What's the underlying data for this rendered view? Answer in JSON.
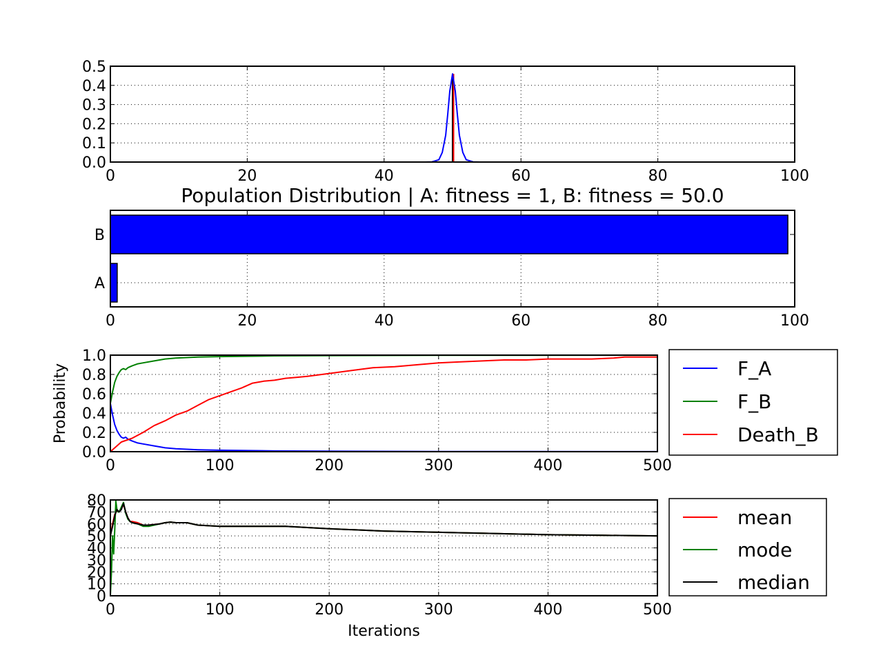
{
  "chart_data": [
    {
      "id": "p1",
      "type": "line",
      "title": "",
      "xlim": [
        0,
        100
      ],
      "ylim": [
        0,
        0.5
      ],
      "xticks": [
        "0",
        "20",
        "40",
        "60",
        "80",
        "100"
      ],
      "yticks": [
        "0.0",
        "0.1",
        "0.2",
        "0.3",
        "0.4",
        "0.5"
      ],
      "grid": true,
      "series": [
        {
          "color": "#0000ff",
          "x": [
            46,
            47,
            48,
            48.5,
            49,
            49.3,
            49.6,
            50,
            50.4,
            50.7,
            51,
            51.5,
            52,
            53,
            54
          ],
          "y": [
            0,
            0.001,
            0.012,
            0.05,
            0.14,
            0.25,
            0.37,
            0.46,
            0.37,
            0.25,
            0.14,
            0.05,
            0.012,
            0.001,
            0
          ]
        }
      ],
      "vlines": [
        {
          "x": 50,
          "ymin": 0,
          "ymax": 0.46,
          "color": "#000000"
        },
        {
          "x": 50.15,
          "ymin": 0,
          "ymax": 0.46,
          "color": "#ff0000"
        }
      ]
    },
    {
      "id": "p2",
      "type": "bar",
      "orientation": "horizontal",
      "title": "Population Distribution | A: fitness = 1,  B: fitness = 50.0",
      "categories": [
        "A",
        "B"
      ],
      "values": [
        1,
        99
      ],
      "xlim": [
        0,
        100
      ],
      "xticks": [
        "0",
        "20",
        "40",
        "60",
        "80",
        "100"
      ],
      "grid": true,
      "color": "#0000ff"
    },
    {
      "id": "p3",
      "type": "line",
      "ylabel": "Probability",
      "xlim": [
        0,
        500
      ],
      "ylim": [
        0,
        1.0
      ],
      "xticks": [
        "0",
        "100",
        "200",
        "300",
        "400",
        "500"
      ],
      "yticks": [
        "0.0",
        "0.2",
        "0.4",
        "0.6",
        "0.8",
        "1.0"
      ],
      "grid": true,
      "legend": "outside-right",
      "series": [
        {
          "name": "F_A",
          "color": "#0000ff",
          "x": [
            0,
            2,
            4,
            6,
            8,
            10,
            12,
            14,
            16,
            20,
            25,
            30,
            40,
            50,
            60,
            80,
            100,
            150,
            200,
            300,
            500
          ],
          "y": [
            0.5,
            0.38,
            0.28,
            0.22,
            0.18,
            0.15,
            0.14,
            0.15,
            0.13,
            0.11,
            0.09,
            0.08,
            0.06,
            0.04,
            0.03,
            0.02,
            0.015,
            0.008,
            0.005,
            0.002,
            0.001
          ]
        },
        {
          "name": "F_B",
          "color": "#008000",
          "x": [
            0,
            2,
            4,
            6,
            8,
            10,
            12,
            14,
            16,
            20,
            25,
            30,
            40,
            50,
            60,
            80,
            100,
            150,
            200,
            300,
            500
          ],
          "y": [
            0.5,
            0.62,
            0.72,
            0.78,
            0.82,
            0.85,
            0.86,
            0.85,
            0.87,
            0.89,
            0.91,
            0.92,
            0.94,
            0.96,
            0.97,
            0.98,
            0.985,
            0.992,
            0.995,
            0.998,
            0.999
          ]
        },
        {
          "name": "Death_B",
          "color": "#ff0000",
          "x": [
            0,
            10,
            20,
            30,
            40,
            50,
            60,
            70,
            80,
            90,
            100,
            110,
            120,
            130,
            140,
            150,
            160,
            170,
            180,
            200,
            220,
            240,
            260,
            280,
            300,
            320,
            340,
            360,
            380,
            400,
            420,
            440,
            460,
            470,
            480,
            500
          ],
          "y": [
            0,
            0.1,
            0.14,
            0.2,
            0.27,
            0.32,
            0.38,
            0.42,
            0.48,
            0.54,
            0.58,
            0.62,
            0.66,
            0.71,
            0.73,
            0.74,
            0.76,
            0.77,
            0.78,
            0.81,
            0.84,
            0.87,
            0.88,
            0.9,
            0.92,
            0.93,
            0.94,
            0.95,
            0.95,
            0.96,
            0.96,
            0.96,
            0.97,
            0.98,
            0.98,
            0.98
          ]
        }
      ]
    },
    {
      "id": "p4",
      "type": "line",
      "xlabel": "Iterations",
      "xlim": [
        0,
        500
      ],
      "ylim": [
        0,
        80
      ],
      "xticks": [
        "0",
        "100",
        "200",
        "300",
        "400",
        "500"
      ],
      "yticks": [
        "0",
        "10",
        "20",
        "30",
        "40",
        "50",
        "60",
        "70",
        "80"
      ],
      "grid": true,
      "legend": "outside-right",
      "series": [
        {
          "name": "mean",
          "color": "#ff0000",
          "x": [
            0,
            2,
            4,
            6,
            8,
            10,
            12,
            14,
            16,
            18,
            20,
            25,
            30,
            35,
            40,
            45,
            50,
            55,
            60,
            70,
            80,
            100,
            120,
            160,
            200,
            250,
            300,
            350,
            400,
            450,
            500
          ],
          "y": [
            50,
            60,
            68,
            71,
            70,
            73,
            76,
            70,
            65,
            62,
            62,
            61,
            59,
            59,
            59.5,
            60,
            61,
            61.5,
            61,
            61,
            59,
            58,
            58,
            58,
            56,
            54,
            53,
            52,
            51,
            50.5,
            50
          ]
        },
        {
          "name": "mode",
          "color": "#008000",
          "x": [
            0,
            1,
            2,
            3,
            4,
            5,
            6,
            7,
            8,
            10,
            12,
            14,
            16,
            18,
            20,
            25,
            30,
            35,
            40,
            45,
            50,
            55,
            60,
            70,
            80,
            100,
            120,
            160,
            200,
            250,
            300,
            350,
            400,
            450,
            500
          ],
          "y": [
            0,
            20,
            50,
            35,
            55,
            79,
            72,
            70,
            70,
            74,
            78,
            69,
            64,
            62,
            61,
            60,
            58,
            58,
            59,
            60,
            61,
            61.5,
            61,
            61,
            59,
            58,
            58,
            58,
            56,
            54,
            53,
            52,
            51,
            50.5,
            50
          ]
        },
        {
          "name": "median",
          "color": "#000000",
          "x": [
            0,
            2,
            4,
            6,
            8,
            10,
            12,
            14,
            16,
            18,
            20,
            25,
            30,
            35,
            40,
            45,
            50,
            55,
            60,
            70,
            80,
            100,
            120,
            160,
            200,
            250,
            300,
            350,
            400,
            450,
            500
          ],
          "y": [
            50,
            58,
            67,
            72,
            70,
            72,
            77,
            70,
            65,
            62,
            61,
            60,
            59,
            59,
            59.5,
            60,
            61,
            61.5,
            61,
            61,
            59,
            58,
            58,
            58,
            56,
            54,
            53,
            52,
            51,
            50.5,
            50
          ]
        }
      ]
    }
  ]
}
